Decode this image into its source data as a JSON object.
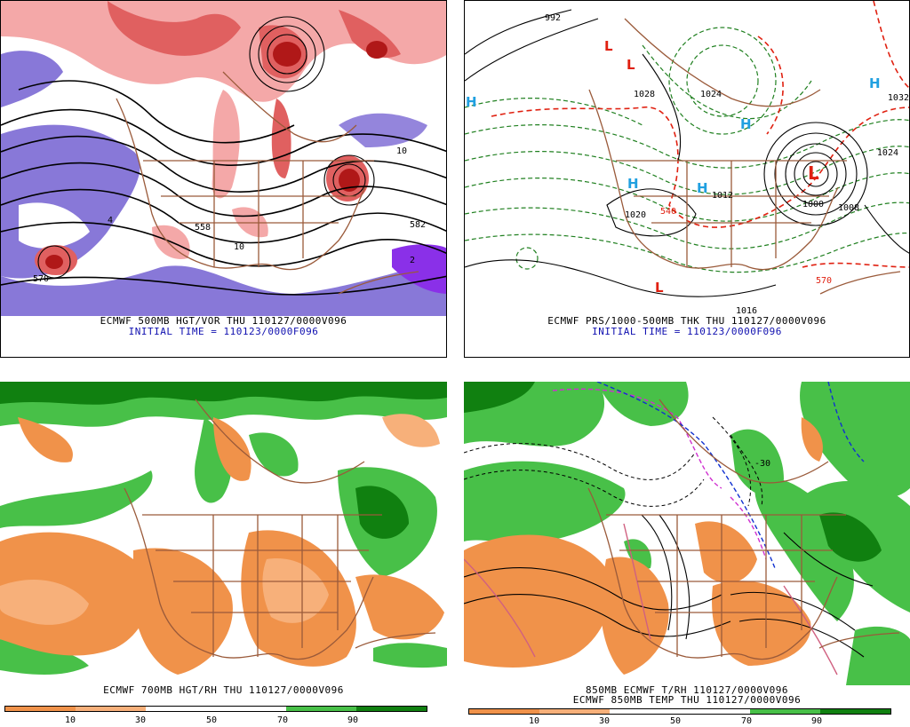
{
  "panels": {
    "top_left": {
      "caption_1": "ECMWF 500MB HGT/VOR THU 110127/0000V096",
      "caption_2": "INITIAL TIME = 110123/0000F096",
      "contour_labels": [
        "582",
        "558",
        "10",
        "570",
        "10",
        "4",
        "2"
      ]
    },
    "top_right": {
      "caption_1": "ECMWF PRS/1000-500MB THK THU 110127/0000V096",
      "caption_2": "INITIAL TIME = 110123/0000F096",
      "markers": [
        "L",
        "L",
        "L",
        "L",
        "H",
        "H",
        "H",
        "H",
        "H"
      ],
      "contour_labels": [
        "1032",
        "1024",
        "1024",
        "1008",
        "1000",
        "992",
        "1016",
        "570",
        "540",
        "1020",
        "1028",
        "1012"
      ]
    },
    "bottom_left": {
      "caption_1": "ECMWF 700MB HGT/RH THU 110127/0000V096",
      "scale_ticks": [
        "10",
        "30",
        "50",
        "70",
        "90"
      ]
    },
    "bottom_right": {
      "caption_1": "850MB ECMWF T/RH 110127/0000V096",
      "caption_2": "ECMWF 850MB TEMP THU 110127/0000V096",
      "contour_labels": [
        "-30"
      ],
      "scale_ticks": [
        "10",
        "30",
        "50",
        "70",
        "90"
      ]
    }
  },
  "colors": {
    "vort_red_light": "#f4a8a8",
    "vort_red_mid": "#e06060",
    "vort_red_dark": "#b01818",
    "vort_purple_light": "#8878d8",
    "vort_purple_dark": "#8a30e8",
    "rh_orange_dark": "#f0924a",
    "rh_orange_light": "#f7b07a",
    "rh_green_light": "#48c048",
    "rh_green_dark": "#108010",
    "geo_brown": "#9a5a3a",
    "thick_red": "#e02010",
    "thick_green": "#208020"
  }
}
